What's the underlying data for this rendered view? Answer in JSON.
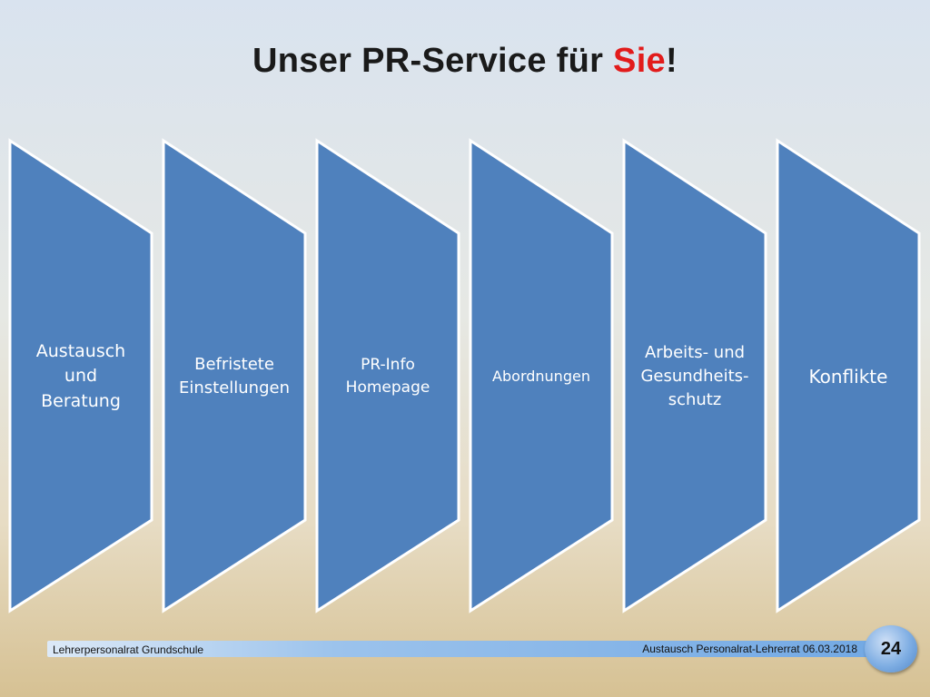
{
  "title": {
    "prefix": "Unser PR-Service für ",
    "highlight": "Sie",
    "suffix": "!",
    "highlight_color": "#e21b1b"
  },
  "shapes": {
    "fill": "#4f81bd",
    "stroke": "#ffffff",
    "items": [
      {
        "lines": [
          "Austausch",
          "und",
          "Beratung"
        ],
        "font_size": 19
      },
      {
        "lines": [
          "Befristete",
          "Einstellungen"
        ],
        "font_size": 18
      },
      {
        "lines": [
          "PR-Info",
          "Homepage"
        ],
        "font_size": 17
      },
      {
        "lines": [
          "Abordnungen"
        ],
        "font_size": 16
      },
      {
        "lines": [
          "Arbeits- und",
          "Gesundheits-",
          "schutz"
        ],
        "font_size": 18
      },
      {
        "lines": [
          "Konflikte"
        ],
        "font_size": 20
      }
    ]
  },
  "footer": {
    "left": "Lehrerpersonalrat Grundschule",
    "right": "Austausch Personalrat-Lehrerrat 06.03.2018",
    "page": "24"
  }
}
